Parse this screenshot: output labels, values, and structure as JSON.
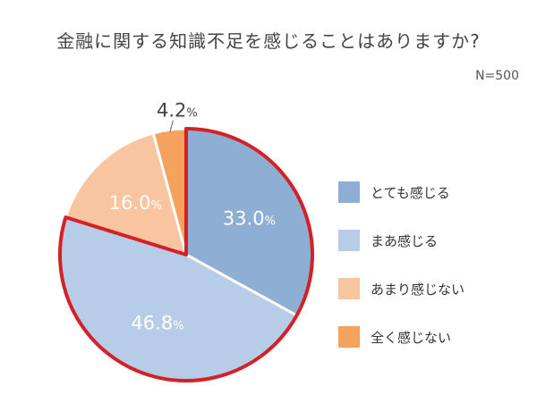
{
  "chart_data": {
    "type": "pie",
    "title": "金融に関する知識不足を感じることはありますか?",
    "sample_size": "N=500",
    "unit": "%",
    "slices": [
      {
        "label": "とても感じる",
        "value": 33.0,
        "value_text": "33.0",
        "color": "#8eaed3",
        "highlighted": true
      },
      {
        "label": "まあ感じる",
        "value": 46.8,
        "value_text": "46.8",
        "color": "#b7cce6",
        "highlighted": true
      },
      {
        "label": "あまり感じない",
        "value": 16.0,
        "value_text": "16.0",
        "color": "#f9c4a0",
        "highlighted": false
      },
      {
        "label": "全く感じない",
        "value": 4.2,
        "value_text": "4.2",
        "color": "#f6a25f",
        "highlighted": false
      }
    ],
    "highlight_color": "#d42027",
    "legend_position": "right"
  }
}
